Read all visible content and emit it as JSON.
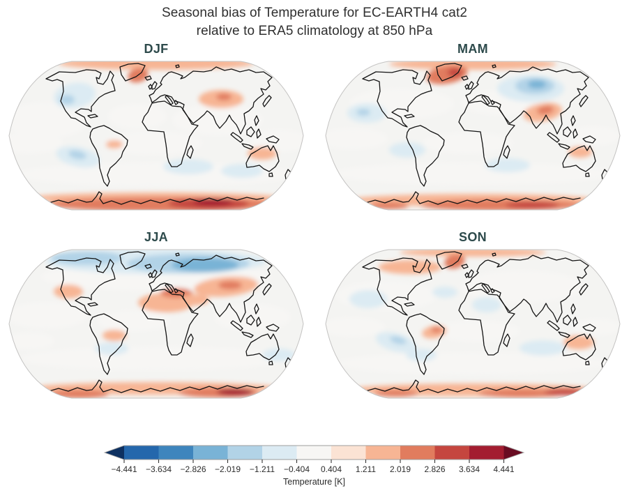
{
  "title": {
    "line1": "Seasonal bias of Temperature for EC-EARTH4 cat2",
    "line2": "relative to ERA5 climatology at 850 hPa"
  },
  "map_style": {
    "base_color": "#f4f4f2",
    "coast_color": "#141414",
    "edge_color": "#c4c3c2",
    "season_title_color": "#2d4a4b",
    "title_color": "#2f2f2f"
  },
  "colorbar": {
    "label": "Temperature [K]",
    "tick_labels": [
      "−4.441",
      "−3.634",
      "−2.826",
      "−2.019",
      "−1.211",
      "−0.404",
      "0.404",
      "1.211",
      "2.019",
      "2.826",
      "3.634",
      "4.441"
    ],
    "under_color": "#0e3161",
    "over_color": "#690c22",
    "segment_colors": [
      "#2467ac",
      "#3e85bd",
      "#79b3d6",
      "#b2d3e7",
      "#dcebf3",
      "#f7f6f4",
      "#fbe3d4",
      "#f7b594",
      "#e17c5e",
      "#c5463f",
      "#a31d30"
    ],
    "outline_color": "#9e9d9c",
    "tick_color": "#333333",
    "text_color": "#2b2b2b"
  },
  "panels": [
    {
      "id": "djf",
      "label": "DJF",
      "blobs": [
        [
          55,
          85,
          60,
          26,
          0,
          5
        ],
        [
          185,
          80,
          42,
          18,
          0,
          5
        ],
        [
          300,
          85,
          65,
          22,
          0,
          5
        ],
        [
          30,
          118,
          48,
          15,
          0,
          5
        ],
        [
          208,
          118,
          70,
          17,
          0,
          5
        ],
        [
          390,
          115,
          42,
          16,
          0,
          5
        ],
        [
          212,
          163,
          200,
          17,
          0,
          5
        ],
        [
          95,
          50,
          30,
          18,
          -10,
          4
        ],
        [
          84,
          56,
          11,
          7,
          0,
          3
        ],
        [
          100,
          138,
          32,
          14,
          12,
          4
        ],
        [
          99,
          135,
          13,
          6,
          12,
          3
        ],
        [
          258,
          152,
          36,
          11,
          0,
          4
        ],
        [
          335,
          158,
          30,
          10,
          0,
          4
        ],
        [
          212,
          4,
          140,
          9,
          0,
          7
        ],
        [
          186,
          21,
          15,
          10,
          -15,
          8
        ],
        [
          305,
          55,
          32,
          13,
          0,
          7
        ],
        [
          309,
          52,
          11,
          5,
          0,
          8
        ],
        [
          364,
          133,
          21,
          9,
          0,
          7
        ],
        [
          152,
          120,
          12,
          6,
          0,
          7
        ],
        [
          212,
          197,
          182,
          8,
          0,
          7
        ],
        [
          222,
          206,
          165,
          10,
          0,
          8
        ],
        [
          287,
          205,
          58,
          8,
          0,
          9
        ],
        [
          293,
          203,
          28,
          5,
          0,
          10
        ]
      ]
    },
    {
      "id": "mam",
      "label": "MAM",
      "blobs": [
        [
          110,
          62,
          75,
          22,
          0,
          5
        ],
        [
          255,
          60,
          60,
          18,
          0,
          5
        ],
        [
          40,
          112,
          50,
          15,
          0,
          5
        ],
        [
          205,
          118,
          65,
          15,
          0,
          5
        ],
        [
          385,
          108,
          38,
          14,
          0,
          5
        ],
        [
          212,
          162,
          200,
          16,
          0,
          5
        ],
        [
          60,
          75,
          28,
          14,
          0,
          4
        ],
        [
          55,
          74,
          10,
          5,
          0,
          3
        ],
        [
          295,
          40,
          48,
          19,
          0,
          4
        ],
        [
          301,
          36,
          28,
          12,
          0,
          3
        ],
        [
          304,
          34,
          13,
          6,
          0,
          2
        ],
        [
          118,
          128,
          26,
          11,
          0,
          4
        ],
        [
          262,
          150,
          32,
          10,
          0,
          4
        ],
        [
          212,
          5,
          120,
          8,
          0,
          7
        ],
        [
          175,
          20,
          30,
          13,
          -10,
          8
        ],
        [
          186,
          17,
          10,
          6,
          0,
          9
        ],
        [
          312,
          74,
          28,
          13,
          -10,
          7
        ],
        [
          316,
          71,
          12,
          6,
          -10,
          8
        ],
        [
          366,
          131,
          17,
          8,
          0,
          7
        ],
        [
          212,
          200,
          178,
          9,
          0,
          7
        ],
        [
          252,
          207,
          115,
          8,
          0,
          8
        ],
        [
          297,
          207,
          38,
          5,
          0,
          9
        ],
        [
          92,
          208,
          28,
          5,
          0,
          8
        ]
      ]
    },
    {
      "id": "jja",
      "label": "JJA",
      "blobs": [
        [
          55,
          95,
          58,
          19,
          0,
          5
        ],
        [
          180,
          103,
          52,
          15,
          0,
          5
        ],
        [
          350,
          98,
          55,
          19,
          0,
          5
        ],
        [
          212,
          157,
          195,
          17,
          0,
          5
        ],
        [
          30,
          132,
          36,
          12,
          0,
          5
        ],
        [
          212,
          40,
          165,
          20,
          0,
          5
        ],
        [
          212,
          18,
          158,
          18,
          0,
          4
        ],
        [
          258,
          21,
          88,
          14,
          0,
          3
        ],
        [
          282,
          23,
          48,
          10,
          0,
          2
        ],
        [
          112,
          13,
          52,
          10,
          0,
          3
        ],
        [
          388,
          152,
          24,
          9,
          0,
          4
        ],
        [
          148,
          143,
          24,
          9,
          0,
          4
        ],
        [
          226,
          77,
          40,
          14,
          0,
          7
        ],
        [
          241,
          63,
          23,
          7,
          0,
          8
        ],
        [
          267,
          73,
          21,
          8,
          0,
          7
        ],
        [
          312,
          54,
          46,
          14,
          -5,
          7
        ],
        [
          318,
          52,
          17,
          6,
          0,
          8
        ],
        [
          86,
          61,
          21,
          10,
          0,
          7
        ],
        [
          152,
          124,
          17,
          8,
          0,
          7
        ],
        [
          212,
          200,
          178,
          9,
          0,
          7
        ],
        [
          302,
          206,
          58,
          7,
          0,
          8
        ],
        [
          325,
          205,
          26,
          5,
          0,
          10
        ],
        [
          102,
          208,
          42,
          6,
          0,
          8
        ]
      ]
    },
    {
      "id": "son",
      "label": "SON",
      "blobs": [
        [
          88,
          67,
          72,
          21,
          0,
          5
        ],
        [
          282,
          54,
          88,
          23,
          0,
          5
        ],
        [
          40,
          112,
          46,
          14,
          0,
          5
        ],
        [
          218,
          118,
          62,
          15,
          0,
          5
        ],
        [
          390,
          112,
          34,
          12,
          0,
          5
        ],
        [
          212,
          164,
          195,
          16,
          0,
          5
        ],
        [
          62,
          72,
          27,
          13,
          0,
          4
        ],
        [
          172,
          62,
          18,
          8,
          0,
          4
        ],
        [
          232,
          80,
          21,
          11,
          0,
          4
        ],
        [
          102,
          134,
          30,
          13,
          15,
          4
        ],
        [
          105,
          131,
          12,
          5,
          15,
          3
        ],
        [
          138,
          152,
          22,
          9,
          0,
          4
        ],
        [
          312,
          142,
          33,
          11,
          0,
          4
        ],
        [
          212,
          5,
          105,
          6,
          0,
          7
        ],
        [
          186,
          18,
          15,
          10,
          -15,
          8
        ],
        [
          122,
          26,
          45,
          10,
          0,
          7
        ],
        [
          157,
          119,
          18,
          9,
          -10,
          7
        ],
        [
          160,
          116,
          8,
          4,
          0,
          8
        ],
        [
          364,
          134,
          22,
          10,
          0,
          7
        ],
        [
          212,
          202,
          178,
          9,
          0,
          7
        ],
        [
          282,
          207,
          62,
          6,
          0,
          8
        ],
        [
          102,
          207,
          32,
          5,
          0,
          8
        ],
        [
          344,
          205,
          30,
          5,
          0,
          9
        ]
      ]
    }
  ],
  "chart_data": {
    "type": "heatmap",
    "title": "Seasonal bias of Temperature for EC-EARTH4 cat2 relative to ERA5 climatology at 850 hPa",
    "subplots": [
      "DJF",
      "MAM",
      "JJA",
      "SON"
    ],
    "projection": "Robinson world maps with coastlines",
    "colorbar": {
      "label": "Temperature [K]",
      "levels": [
        -4.441,
        -3.634,
        -2.826,
        -2.019,
        -1.211,
        -0.404,
        0.404,
        1.211,
        2.019,
        2.826,
        3.634,
        4.441
      ],
      "extend": "both",
      "colors": [
        "#0e3161",
        "#2467ac",
        "#3e85bd",
        "#79b3d6",
        "#b2d3e7",
        "#dcebf3",
        "#f7f6f4",
        "#fbe3d4",
        "#f7b594",
        "#e17c5e",
        "#c5463f",
        "#a31d30",
        "#690c22"
      ]
    },
    "notable_features": {
      "DJF": "Cool bias (~-1 to -2 K) over Canada and SE Pacific; warm bias up to ~3-4 K over Antarctica; weak warm patches over Arctic rim, Greenland, central Asia, Australia.",
      "MAM": "Warm bias over Greenland/Baffin region; cold bias core (~-3 K) over Siberia; warm bias over India/Himalaya; moderate warm bias over Antarctica.",
      "JJA": "Strong cold bias (~-3 K) over Arctic Ocean/Siberian coast; warm bias over Sahara, Middle East, central Asia and western US; warm bias spots over East Antarctica.",
      "SON": "Weak biases overall; warm Greenland and northern Canada; cool SE Pacific; warm patches over Brazil, Australia and Antarctic coast."
    }
  }
}
